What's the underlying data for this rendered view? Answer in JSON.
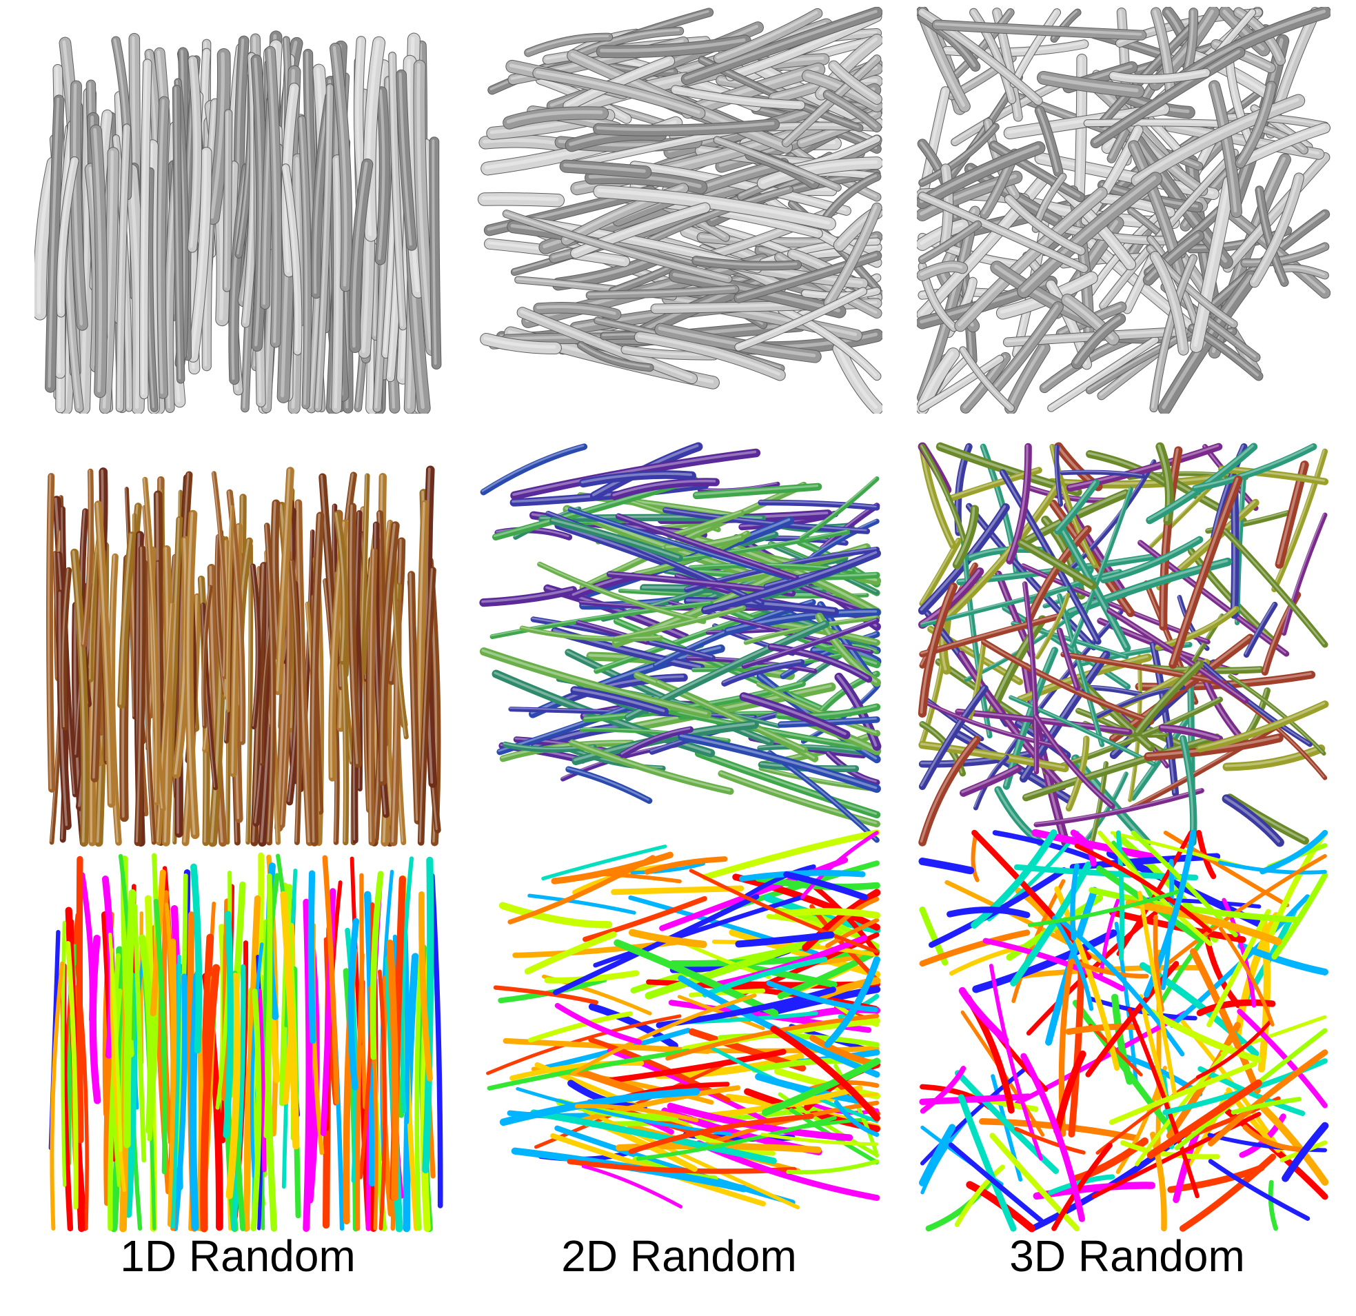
{
  "figure": {
    "columns": [
      {
        "label": "1D Random",
        "orientation": "vertical"
      },
      {
        "label": "2D Random",
        "orientation": "planar"
      },
      {
        "label": "3D Random",
        "orientation": "isotropic"
      }
    ],
    "rows": [
      {
        "style": "gray-shaded",
        "colors": [
          "#9a9a9a",
          "#b5b5b5",
          "#c8c8c8",
          "#8a8a8a",
          "#d6d6d6"
        ]
      },
      {
        "style": "orientation-colored",
        "colors_by_column": [
          [
            "#8a4a1e",
            "#a0602a",
            "#7a3a18",
            "#b07a30",
            "#6e2c1a",
            "#9c6e22"
          ],
          [
            "#3fa64a",
            "#3a3aa8",
            "#5a2a9a",
            "#2e8a6a",
            "#6ab04a",
            "#2a4ab0"
          ],
          [
            "#6a8a2a",
            "#3a3aa0",
            "#a0402a",
            "#2a9a7a",
            "#7a2a8a",
            "#9aa02a"
          ]
        ]
      },
      {
        "style": "label-colored",
        "colors": [
          "#ff0000",
          "#ff7f00",
          "#ffd000",
          "#c8ff00",
          "#32e632",
          "#00e0c0",
          "#00b4ff",
          "#1e1eff",
          "#ff00ff",
          "#ff3c00",
          "#a0ff00",
          "#ffaa00"
        ]
      }
    ]
  }
}
